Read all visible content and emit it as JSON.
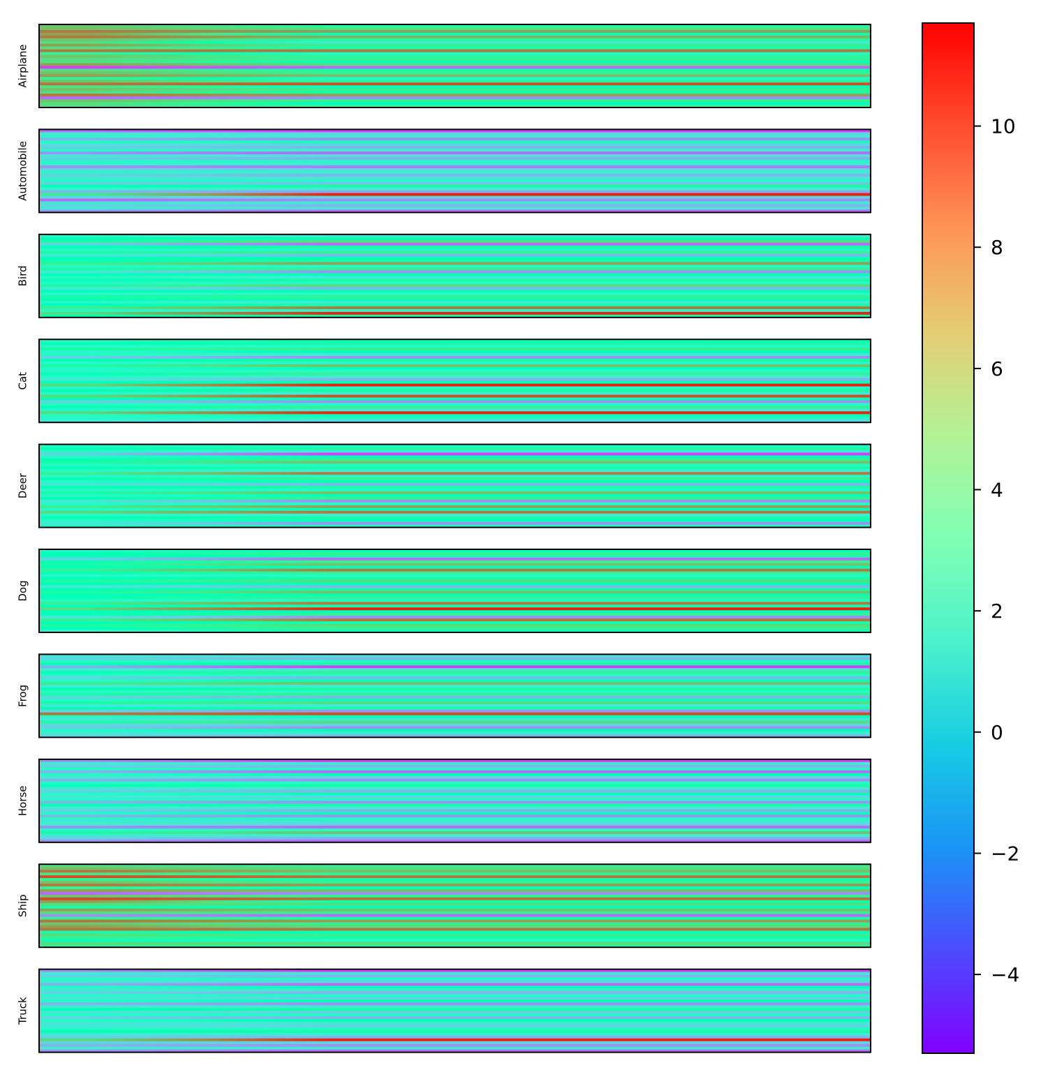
{
  "chart_data": {
    "type": "heatmap",
    "colormap": "rainbow",
    "panels": [
      {
        "label": "Airplane",
        "base": [
          4.5,
          5.5,
          8,
          3,
          7.5,
          4.5,
          1,
          5,
          4,
          9,
          2,
          4.5,
          5,
          3,
          6,
          -3,
          4,
          5,
          7,
          2,
          4.5,
          10,
          3,
          5,
          4,
          8,
          -2,
          5,
          3,
          4.5
        ],
        "early": [
          7,
          7,
          9,
          8,
          9,
          7,
          6,
          8,
          6,
          9,
          5,
          7,
          6,
          6,
          8,
          -4,
          6,
          7,
          8,
          5,
          7,
          9,
          6,
          7,
          6,
          9,
          -3,
          7,
          6,
          6
        ]
      },
      {
        "label": "Automobile",
        "base": [
          -4,
          0,
          1,
          -2,
          2.5,
          0,
          -1,
          1.5,
          -3,
          0.5,
          -1,
          2,
          1,
          -2.5,
          0,
          1.5,
          -1,
          0.5,
          2,
          -0.5,
          4,
          1,
          -1.5,
          11,
          0,
          -2,
          1,
          -1,
          0.5,
          -3
        ],
        "early": [
          -3,
          1,
          1.5,
          -1,
          2,
          0.5,
          0,
          2,
          -2,
          1,
          0,
          2,
          1.5,
          -2,
          0,
          2,
          0,
          1,
          2,
          0,
          3,
          1.5,
          -1,
          5,
          0,
          -3,
          1,
          0,
          1,
          -2
        ]
      },
      {
        "label": "Bird",
        "base": [
          1,
          3,
          6,
          -3,
          4,
          2,
          5,
          -1,
          3,
          4,
          8,
          2,
          5,
          -2,
          3,
          1,
          4,
          2,
          6,
          -1,
          3,
          2,
          5,
          3,
          1,
          4,
          9,
          2,
          11,
          4
        ],
        "early": [
          2,
          3,
          4,
          0,
          3,
          2,
          4,
          1,
          3,
          3,
          5,
          2,
          4,
          1,
          3,
          2,
          3,
          2,
          4,
          1,
          3,
          2,
          4,
          3,
          2,
          3,
          5,
          2,
          6,
          3
        ]
      },
      {
        "label": "Cat",
        "base": [
          3,
          4,
          2,
          5,
          3,
          1,
          -2,
          4,
          2,
          7,
          3,
          2,
          5,
          1,
          -1,
          3,
          11,
          2,
          4,
          1,
          10,
          3,
          -2,
          2,
          5,
          1,
          11,
          3,
          2,
          0
        ],
        "early": [
          2,
          3,
          2,
          4,
          2,
          2,
          0,
          3,
          2,
          4,
          2,
          2,
          3,
          2,
          1,
          3,
          6,
          2,
          3,
          2,
          6,
          3,
          0,
          2,
          3,
          2,
          6,
          2,
          2,
          1
        ]
      },
      {
        "label": "Deer",
        "base": [
          2,
          4,
          1,
          -4,
          3,
          5,
          7,
          2,
          4,
          1,
          9,
          2,
          5,
          3,
          -1,
          4,
          2,
          7,
          3,
          5,
          -2,
          2,
          8,
          3,
          9,
          1,
          4,
          3,
          -2,
          2
        ],
        "early": [
          2,
          3,
          2,
          0,
          2,
          3,
          4,
          2,
          3,
          2,
          5,
          2,
          3,
          2,
          1,
          3,
          2,
          4,
          2,
          3,
          1,
          2,
          5,
          2,
          6,
          2,
          3,
          2,
          1,
          2
        ]
      },
      {
        "label": "Dog",
        "base": [
          3,
          5,
          4,
          -3,
          5,
          7,
          3,
          9,
          5,
          2,
          4,
          6,
          3,
          -1,
          4,
          7,
          3,
          5,
          2,
          9,
          4,
          11,
          3,
          5,
          -2,
          9,
          4,
          6,
          5,
          3
        ],
        "early": [
          2,
          3,
          3,
          0,
          3,
          4,
          3,
          5,
          3,
          2,
          3,
          4,
          3,
          1,
          3,
          4,
          3,
          3,
          2,
          5,
          3,
          6,
          3,
          3,
          1,
          5,
          3,
          4,
          3,
          2
        ]
      },
      {
        "label": "Frog",
        "base": [
          1,
          -1,
          2,
          4,
          -4,
          1,
          5,
          2,
          -1,
          3,
          7,
          1,
          4,
          2,
          5,
          -1,
          3,
          6,
          1,
          4,
          -2,
          10,
          3,
          1,
          6,
          0,
          -2,
          3,
          1,
          -1
        ],
        "early": [
          1,
          0,
          2,
          3,
          -1,
          1,
          3,
          2,
          0,
          2,
          5,
          1,
          3,
          2,
          4,
          0,
          2,
          4,
          1,
          3,
          0,
          9,
          2,
          1,
          4,
          0,
          0,
          2,
          1,
          0
        ]
      },
      {
        "label": "Horse",
        "base": [
          -4,
          1,
          -1,
          2,
          -3,
          3,
          0,
          -2,
          2,
          4,
          1,
          -1,
          3,
          0,
          2,
          -2,
          4,
          1,
          -1,
          3,
          -2,
          2,
          1,
          0,
          -3,
          2,
          7,
          1,
          -1,
          -3
        ],
        "early": [
          -2,
          1,
          0,
          2,
          -1,
          2,
          1,
          -1,
          2,
          3,
          1,
          0,
          2,
          1,
          2,
          -1,
          3,
          1,
          0,
          2,
          -1,
          2,
          1,
          1,
          -2,
          2,
          4,
          1,
          0,
          -2
        ]
      },
      {
        "label": "Ship",
        "base": [
          5,
          6,
          7,
          5,
          9,
          4,
          5,
          8,
          3,
          7,
          -2,
          5,
          9,
          4,
          6,
          3,
          7,
          5,
          -3,
          4,
          8,
          5,
          6,
          9,
          3,
          5,
          4,
          2,
          6,
          5
        ],
        "early": [
          6,
          7,
          9,
          6,
          10,
          5,
          7,
          9,
          5,
          8,
          -3,
          7,
          10,
          8,
          6,
          4,
          8,
          6,
          -2,
          5,
          9,
          7,
          8,
          9,
          4,
          6,
          5,
          3,
          6,
          5
        ]
      },
      {
        "label": "Truck",
        "base": [
          -4,
          1,
          -1,
          2,
          0,
          -3,
          3,
          1,
          -1,
          2,
          0,
          3,
          -2,
          1,
          4,
          0,
          2,
          -1,
          3,
          1,
          0,
          2,
          4,
          1,
          -1,
          11,
          0,
          -2,
          1,
          -3
        ],
        "early": [
          -2,
          1,
          0,
          2,
          1,
          -1,
          2,
          1,
          0,
          2,
          1,
          2,
          -1,
          1,
          3,
          1,
          2,
          0,
          2,
          1,
          1,
          2,
          3,
          1,
          0,
          6,
          0,
          -1,
          1,
          -2
        ]
      }
    ],
    "colorbar": {
      "vmin": -5.3,
      "vmax": 11.7,
      "ticks": [
        10,
        8,
        6,
        4,
        2,
        0,
        -2,
        -4
      ],
      "tick_labels": [
        "10",
        "8",
        "6",
        "4",
        "2",
        "0",
        "−2",
        "−4"
      ]
    },
    "title": "",
    "xlabel": "",
    "ylabel": ""
  }
}
